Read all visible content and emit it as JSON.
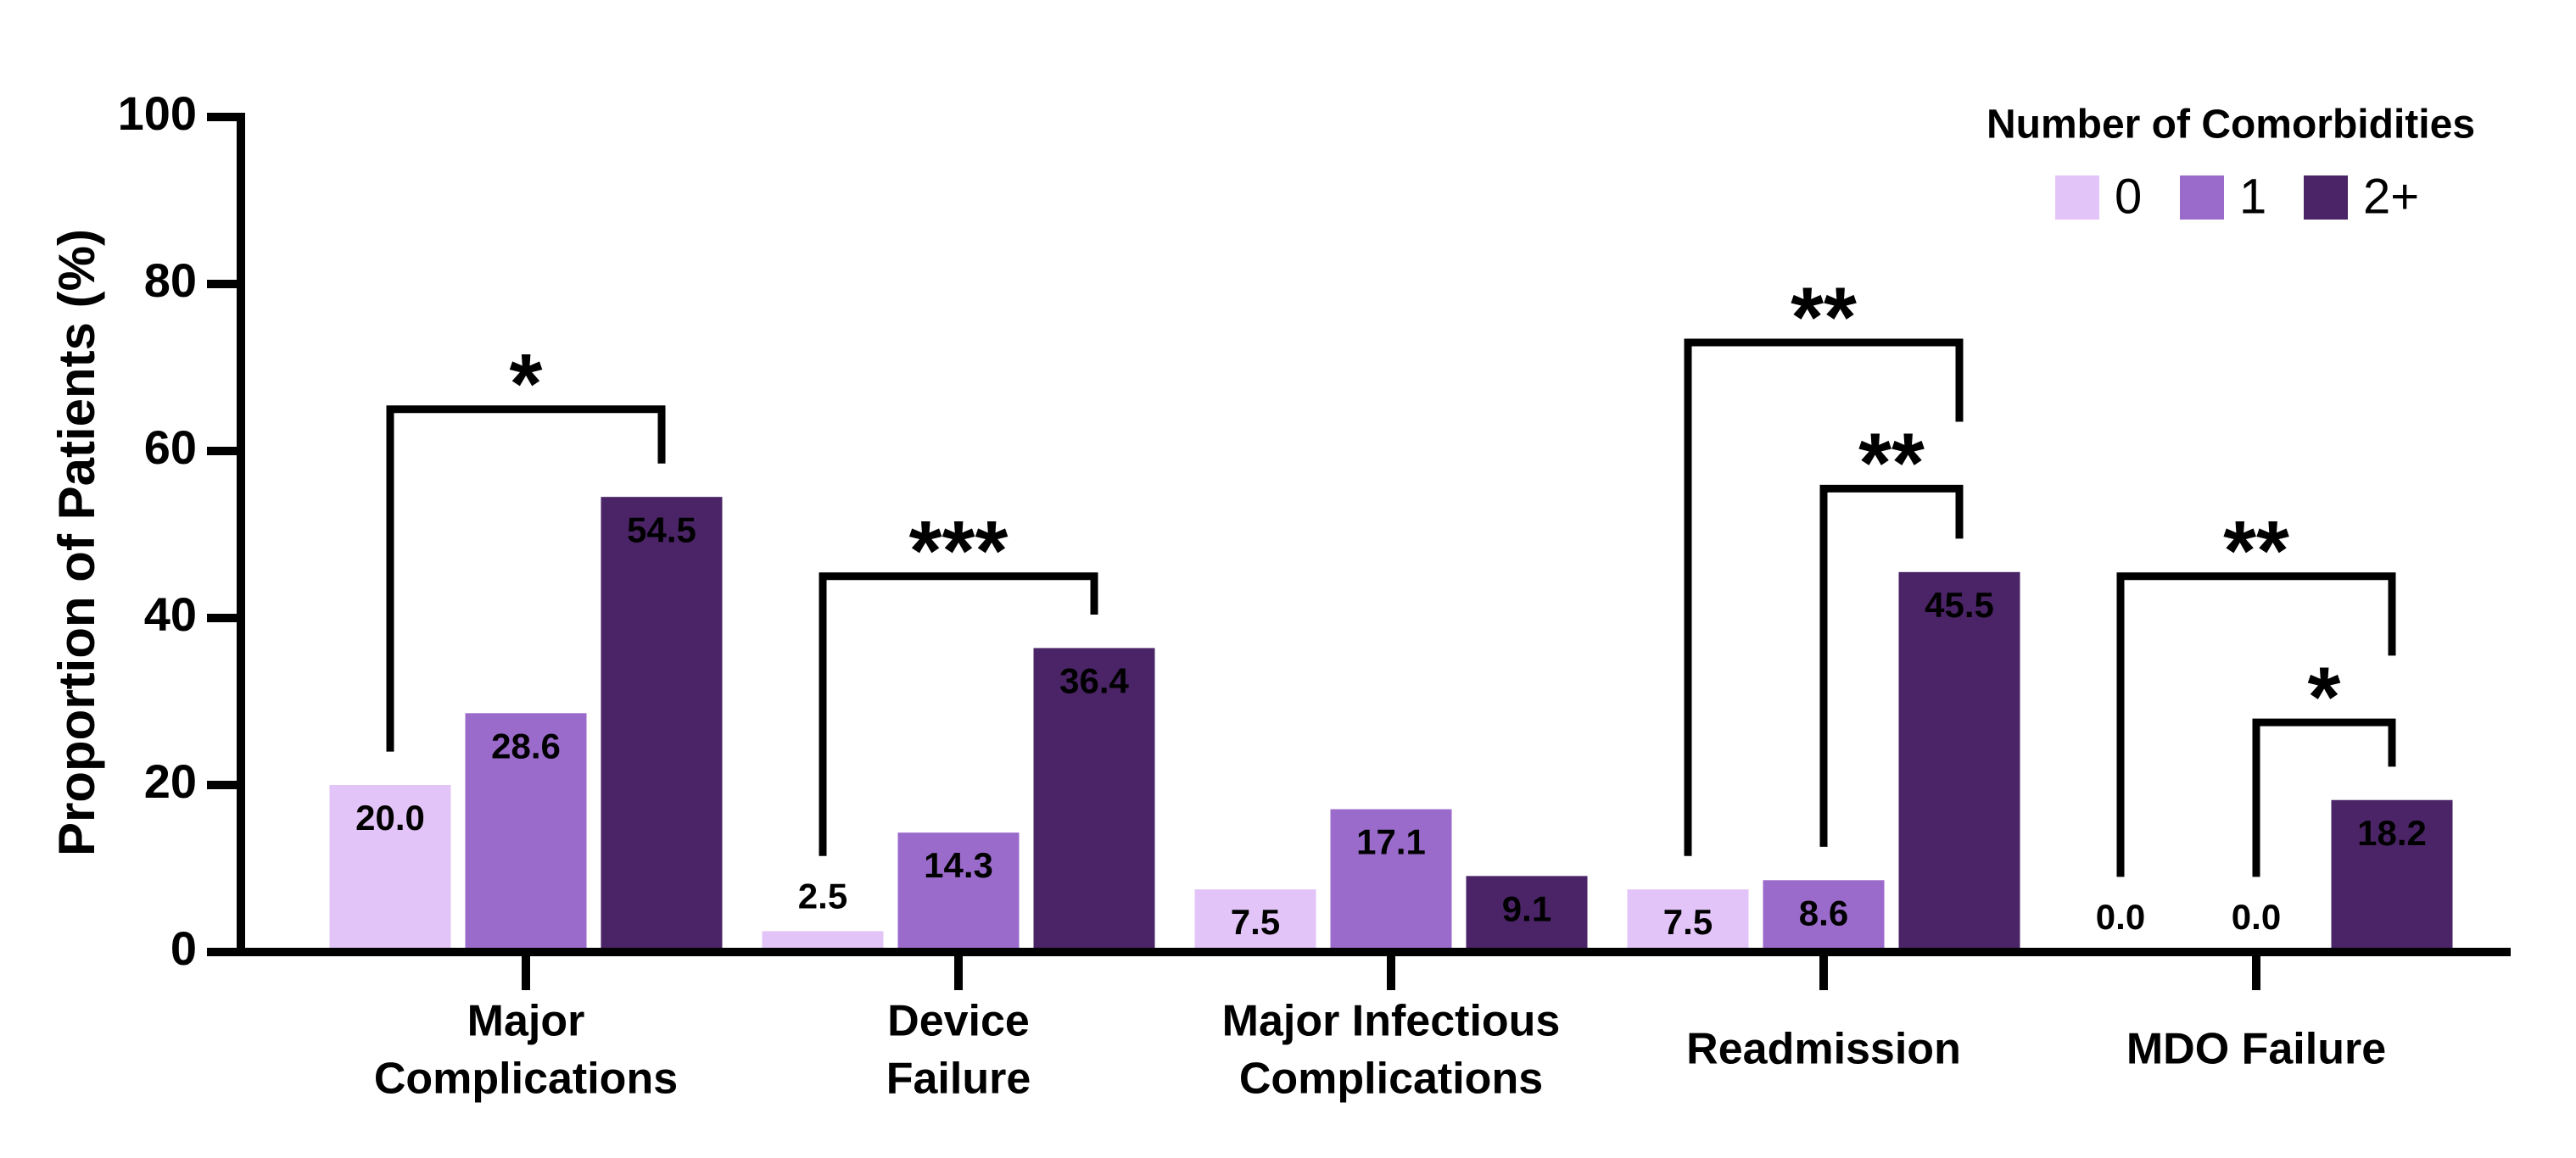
{
  "chart_data": {
    "type": "bar",
    "y_label": "Proportion of Patients (%)",
    "legend_title": "Number of Comorbidities",
    "legend_position": "top-right",
    "categories": [
      [
        "Major",
        "Complications"
      ],
      [
        "Device",
        "Failure"
      ],
      [
        "Major Infectious",
        "Complications"
      ],
      [
        "Readmission"
      ],
      [
        "MDO Failure"
      ]
    ],
    "series": [
      {
        "name": "0",
        "color": "#e3c4f8",
        "values": [
          20.0,
          2.5,
          7.5,
          7.5,
          0.0
        ],
        "value_labels": [
          "20.0",
          "2.5",
          "7.5",
          "7.5",
          "0.0"
        ]
      },
      {
        "name": "1",
        "color": "#9b6bcc",
        "values": [
          28.6,
          14.3,
          17.1,
          8.6,
          0.0
        ],
        "value_labels": [
          "28.6",
          "14.3",
          "17.1",
          "8.6",
          "0.0"
        ]
      },
      {
        "name": "2+",
        "color": "#4a2466",
        "values": [
          54.5,
          36.4,
          9.1,
          45.5,
          18.2
        ],
        "value_labels": [
          "54.5",
          "36.4",
          "9.1",
          "45.5",
          "18.2"
        ]
      }
    ],
    "ylim": [
      0,
      100
    ],
    "yticks": [
      0,
      20,
      40,
      60,
      80,
      100
    ],
    "brackets": [
      {
        "category": 0,
        "from": 0,
        "to": 2,
        "y": 65,
        "label": "*"
      },
      {
        "category": 1,
        "from": 0,
        "to": 2,
        "y": 45,
        "label": "***"
      },
      {
        "category": 3,
        "from": 0,
        "to": 2,
        "y": 73,
        "label": "**"
      },
      {
        "category": 3,
        "from": 1,
        "to": 2,
        "y": 55.5,
        "label": "**"
      },
      {
        "category": 4,
        "from": 0,
        "to": 2,
        "y": 45,
        "label": "**"
      },
      {
        "category": 4,
        "from": 1,
        "to": 2,
        "y": 27.5,
        "label": "*"
      }
    ]
  }
}
